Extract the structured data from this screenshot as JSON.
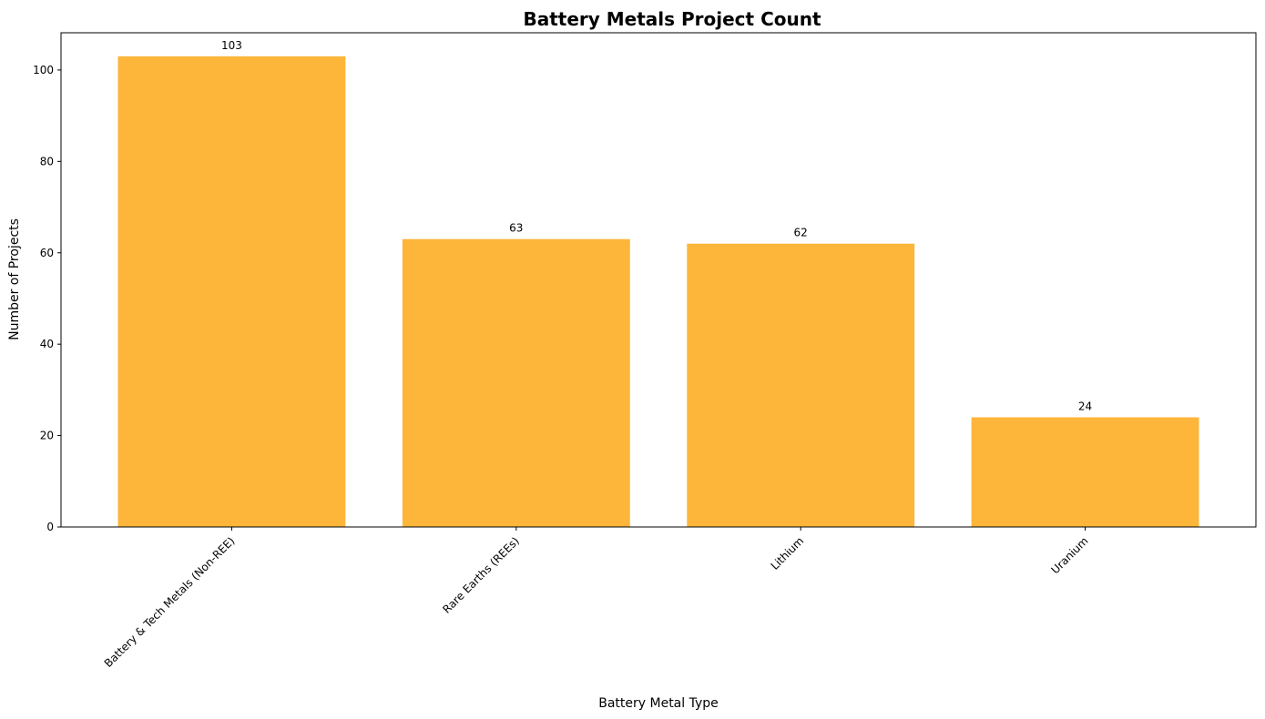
{
  "chart_data": {
    "type": "bar",
    "title": "Battery Metals Project Count",
    "xlabel": "Battery Metal Type",
    "ylabel": "Number of Projects",
    "categories": [
      "Battery & Tech Metals (Non-REE)",
      "Rare Earths (REEs)",
      "Lithium",
      "Uranium"
    ],
    "values": [
      103,
      63,
      62,
      24
    ],
    "data_labels": [
      "103",
      "63",
      "62",
      "24"
    ],
    "ylim": [
      0,
      108.15
    ],
    "yticks": [
      0,
      20,
      40,
      60,
      80,
      100
    ],
    "bar_color": "#fdb22f",
    "grid": false,
    "legend": "none"
  }
}
